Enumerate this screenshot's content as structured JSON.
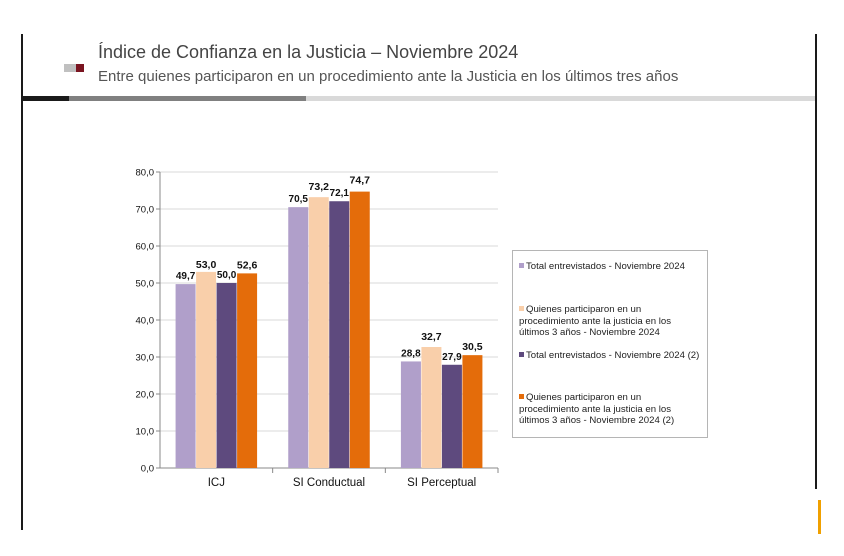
{
  "header": {
    "title": "Índice de Confianza en la Justicia – Noviembre 2024",
    "subtitle": "Entre quienes participaron en un procedimiento ante la Justicia en los últimos tres años"
  },
  "colors": {
    "series1": "#b09fca",
    "series2": "#f9cfaa",
    "series3": "#5e4a7e",
    "series4": "#e46c0a",
    "bar_black": "#1a1a1a",
    "bar_gray": "#808080",
    "bar_light": "#d9d9d9",
    "logo_gray": "#c0c0c0",
    "logo_dark": "#7a1420"
  },
  "chart_data": {
    "type": "bar",
    "categories": [
      "ICJ",
      "SI Conductual",
      "SI Perceptual"
    ],
    "series": [
      {
        "name": "Total entrevistados - Noviembre 2024",
        "values": [
          49.7,
          70.5,
          28.8
        ],
        "labels": [
          "49,7",
          "70,5",
          "28,8"
        ]
      },
      {
        "name": "Quienes participaron en un procedimiento ante la justicia en los últimos 3 años - Noviembre 2024",
        "values": [
          53.0,
          73.2,
          32.7
        ],
        "labels": [
          "53,0",
          "73,2",
          "32,7"
        ]
      },
      {
        "name": "Total entrevistados - Noviembre 2024 (2)",
        "values": [
          50.0,
          72.1,
          27.9
        ],
        "labels": [
          "50,0",
          "72,1",
          "27,9"
        ]
      },
      {
        "name": "Quienes participaron en un procedimiento ante la justicia en los últimos 3 años - Noviembre 2024 (2)",
        "values": [
          52.6,
          74.7,
          30.5
        ],
        "labels": [
          "52,6",
          "74,7",
          "30,5"
        ]
      }
    ],
    "yticks": [
      "0,0",
      "10,0",
      "20,0",
      "30,0",
      "40,0",
      "50,0",
      "60,0",
      "70,0",
      "80,0"
    ],
    "ylim": [
      0,
      80
    ],
    "grid": true,
    "legend_position": "right"
  }
}
